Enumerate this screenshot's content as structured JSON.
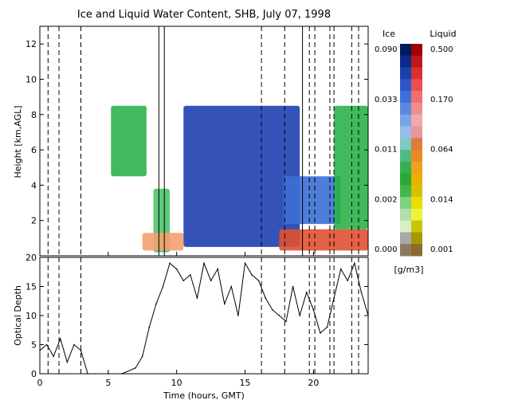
{
  "chart_data": [
    {
      "type": "heatmap",
      "title": "Ice and Liquid Water Content, SHB, July 07, 1998",
      "xlabel": "",
      "ylabel": "Height [km,AGL]",
      "xlim": [
        0,
        24
      ],
      "ylim": [
        0,
        13
      ],
      "y_ticks": [
        2,
        4,
        6,
        8,
        10,
        12
      ],
      "colorbar": {
        "unit": "[g/m3]",
        "ice": {
          "label": "Ice",
          "ticks": [
            "0.090",
            "0.033",
            "0.011",
            "0.002",
            "0.000"
          ]
        },
        "liquid": {
          "label": "Liquid",
          "ticks": [
            "0.500",
            "0.170",
            "0.064",
            "0.014",
            "0.001"
          ]
        }
      },
      "cloud_regions": [
        {
          "phase": "ice",
          "t_start": 5.2,
          "t_end": 7.8,
          "base_km": 4.5,
          "top_km": 8.5
        },
        {
          "phase": "ice",
          "t_start": 8.3,
          "t_end": 9.5,
          "base_km": 0.2,
          "top_km": 3.8
        },
        {
          "phase": "ice",
          "t_start": 10.5,
          "t_end": 19.0,
          "base_km": 0.5,
          "top_km": 8.5
        },
        {
          "phase": "ice",
          "t_start": 17.8,
          "t_end": 22.0,
          "base_km": 1.8,
          "top_km": 4.5
        },
        {
          "phase": "ice",
          "t_start": 21.5,
          "t_end": 24.0,
          "base_km": 1.5,
          "top_km": 8.5
        },
        {
          "phase": "liquid",
          "t_start": 7.5,
          "t_end": 10.5,
          "base_km": 0.3,
          "top_km": 1.3
        },
        {
          "phase": "liquid",
          "t_start": 17.5,
          "t_end": 24.0,
          "base_km": 0.3,
          "top_km": 1.5
        }
      ]
    },
    {
      "type": "line",
      "xlabel": "Time (hours, GMT)",
      "ylabel": "Optical Depth",
      "xlim": [
        0,
        24
      ],
      "ylim": [
        0,
        20
      ],
      "x_ticks": [
        0,
        5,
        10,
        15,
        20
      ],
      "y_ticks": [
        0,
        5,
        10,
        15,
        20
      ],
      "series": [
        {
          "x": [
            0,
            0.5,
            1,
            1.5,
            2,
            2.5,
            3,
            3.5,
            4,
            5,
            6,
            7,
            7.5,
            8,
            8.5,
            9,
            9.5,
            10,
            10.5,
            11,
            11.5,
            12,
            12.5,
            13,
            13.5,
            14,
            14.5,
            15,
            15.5,
            16,
            16.5,
            17,
            17.5,
            18,
            18.5,
            19,
            19.5,
            20,
            20.5,
            21,
            21.5,
            22,
            22.5,
            23,
            23.5,
            24
          ],
          "y": [
            4,
            5,
            3,
            6,
            2,
            5,
            4,
            0,
            0,
            0,
            0,
            1,
            3,
            8,
            12,
            15,
            19,
            18,
            16,
            17,
            13,
            19,
            16,
            18,
            12,
            15,
            10,
            19,
            17,
            16,
            13,
            11,
            10,
            9,
            15,
            10,
            14,
            11,
            7,
            8,
            13,
            18,
            16,
            19,
            14,
            10
          ]
        }
      ]
    }
  ],
  "dashed_times_hr": [
    0.6,
    1.4,
    3.0,
    16.2,
    17.9,
    19.7,
    20.1,
    21.2,
    21.5,
    22.8,
    23.3
  ],
  "solid_times_hr": [
    8.7,
    9.1,
    19.2
  ]
}
